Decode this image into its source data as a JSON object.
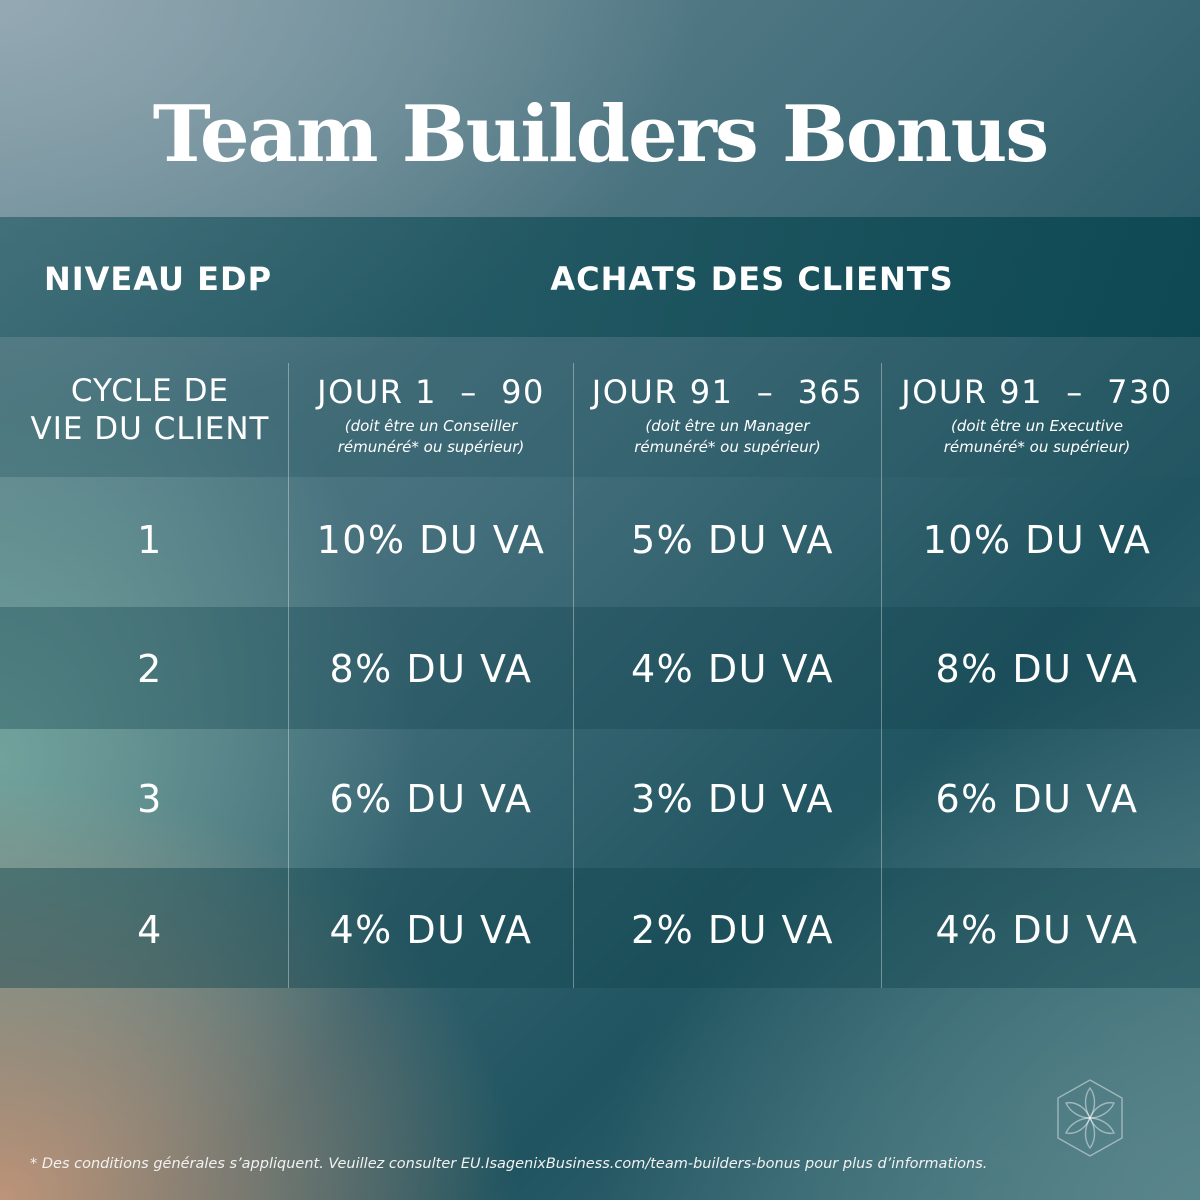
{
  "title": "Team Builders Bonus",
  "header": {
    "left": "NIVEAU EDP",
    "right": "ACHATS DES CLIENTS"
  },
  "cycle_label": [
    "CYCLE DE",
    "VIE DU CLIENT"
  ],
  "columns": [
    {
      "label": "JOUR 1  –  90",
      "note": [
        "(doit être un Conseiller",
        "rémunéré* ou supérieur)"
      ]
    },
    {
      "label": "JOUR 91  –  365",
      "note": [
        "(doit être un Manager",
        "rémunéré* ou supérieur)"
      ]
    },
    {
      "label": "JOUR 91  –  730",
      "note": [
        "(doit être un Executive",
        "rémunéré* ou supérieur)"
      ]
    }
  ],
  "rows": [
    {
      "level": "1",
      "values": [
        "10% DU VA",
        "5% DU VA",
        "10% DU VA"
      ]
    },
    {
      "level": "2",
      "values": [
        "8% DU VA",
        "4% DU VA",
        "8% DU VA"
      ]
    },
    {
      "level": "3",
      "values": [
        "6% DU VA",
        "3% DU VA",
        "6% DU VA"
      ]
    },
    {
      "level": "4",
      "values": [
        "4% DU VA",
        "2% DU VA",
        "4% DU VA"
      ]
    }
  ],
  "footnote": "* Des conditions générales s’appliquent. Veuillez consulter EU.IsagenixBusiness.com/team-builders-bonus pour plus d’informations.",
  "logo_icon": "isagenix-flower-hexagon-icon",
  "colors": {
    "text": "#ffffff",
    "header_band": "#13505a"
  }
}
